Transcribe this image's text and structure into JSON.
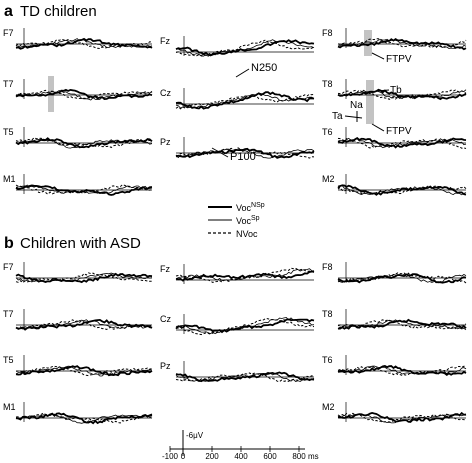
{
  "panels": [
    {
      "letter": "a",
      "title": "TD children"
    },
    {
      "letter": "b",
      "title": "Children with ASD"
    }
  ],
  "legend": [
    {
      "label": "Voc",
      "sup": "NSp",
      "style": "thick"
    },
    {
      "label": "Voc",
      "sup": "Sp",
      "style": "thin"
    },
    {
      "label": "NVoc",
      "sup": "",
      "style": "dashed"
    }
  ],
  "scale": {
    "amplitude_label": "-6μV",
    "x_ticks": [
      "-100",
      "0",
      "200",
      "400",
      "600",
      "800"
    ],
    "x_unit": "ms"
  },
  "annotations": {
    "n250": "N250",
    "p100": "P100",
    "ftpv": "FTPV",
    "ftpv2": "FTPV",
    "na": "Na",
    "ta": "Ta",
    "tb": "Tb"
  },
  "chart_data": {
    "type": "line",
    "description_units": {
      "x": "ms",
      "y": "μV (negative up)"
    },
    "xlim": [
      -100,
      800
    ],
    "channels_left": [
      "F7",
      "T7",
      "T5",
      "M1"
    ],
    "channels_middle": [
      "Fz",
      "Cz",
      "Pz"
    ],
    "channels_right": [
      "F8",
      "T8",
      "T6",
      "M2"
    ],
    "series": [
      {
        "name": "VocNSp",
        "style": "thick"
      },
      {
        "name": "VocSp",
        "style": "thin"
      },
      {
        "name": "NVoc",
        "style": "dashed"
      }
    ],
    "colors": {
      "line": "#000000",
      "highlight": "#b8b8b8"
    }
  }
}
